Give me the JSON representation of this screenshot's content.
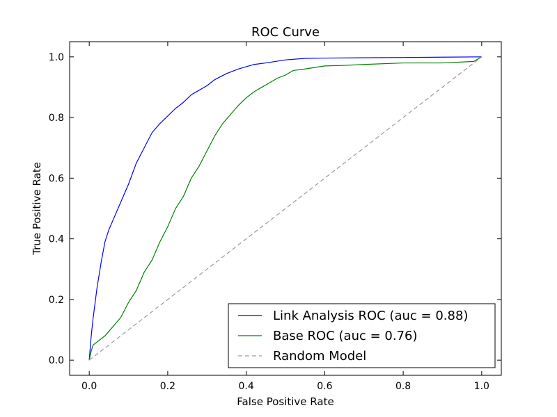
{
  "chart_data": {
    "type": "line",
    "title": "ROC Curve",
    "xlabel": "False Positive Rate",
    "ylabel": "True Positive Rate",
    "xlim": [
      -0.05,
      1.05
    ],
    "ylim": [
      -0.05,
      1.05
    ],
    "xticks": [
      "0.0",
      "0.2",
      "0.4",
      "0.6",
      "0.8",
      "1.0"
    ],
    "yticks": [
      "0.0",
      "0.2",
      "0.4",
      "0.6",
      "0.8",
      "1.0"
    ],
    "grid": false,
    "legend_position": "lower-right",
    "series": [
      {
        "name": "Link Analysis ROC (auc = 0.88)",
        "color": "#0000ff",
        "style": "solid",
        "x": [
          0.0,
          0.005,
          0.01,
          0.02,
          0.03,
          0.04,
          0.05,
          0.06,
          0.08,
          0.1,
          0.12,
          0.14,
          0.16,
          0.18,
          0.2,
          0.22,
          0.24,
          0.26,
          0.28,
          0.3,
          0.32,
          0.35,
          0.38,
          0.42,
          0.45,
          0.5,
          0.55,
          0.6,
          0.7,
          0.8,
          0.9,
          1.0
        ],
        "y": [
          0.0,
          0.08,
          0.14,
          0.24,
          0.32,
          0.39,
          0.43,
          0.46,
          0.52,
          0.58,
          0.65,
          0.7,
          0.75,
          0.78,
          0.805,
          0.83,
          0.85,
          0.875,
          0.89,
          0.905,
          0.925,
          0.945,
          0.96,
          0.975,
          0.98,
          0.99,
          0.995,
          0.996,
          0.997,
          0.998,
          0.999,
          1.0
        ]
      },
      {
        "name": "Base ROC (auc = 0.76)",
        "color": "#008000",
        "style": "solid",
        "x": [
          0.0,
          0.005,
          0.01,
          0.02,
          0.04,
          0.06,
          0.08,
          0.1,
          0.12,
          0.14,
          0.16,
          0.18,
          0.2,
          0.22,
          0.24,
          0.26,
          0.28,
          0.3,
          0.32,
          0.34,
          0.36,
          0.38,
          0.4,
          0.42,
          0.44,
          0.46,
          0.48,
          0.5,
          0.52,
          0.55,
          0.6,
          0.65,
          0.7,
          0.8,
          0.9,
          0.98,
          1.0
        ],
        "y": [
          0.0,
          0.03,
          0.05,
          0.06,
          0.08,
          0.11,
          0.14,
          0.19,
          0.23,
          0.29,
          0.33,
          0.39,
          0.44,
          0.5,
          0.54,
          0.6,
          0.64,
          0.69,
          0.74,
          0.78,
          0.81,
          0.84,
          0.865,
          0.885,
          0.9,
          0.915,
          0.93,
          0.94,
          0.955,
          0.96,
          0.97,
          0.972,
          0.975,
          0.98,
          0.98,
          0.985,
          1.0
        ]
      },
      {
        "name": "Random Model",
        "color": "#999999",
        "style": "dashed",
        "x": [
          0.0,
          1.0
        ],
        "y": [
          0.0,
          1.0
        ]
      }
    ]
  }
}
